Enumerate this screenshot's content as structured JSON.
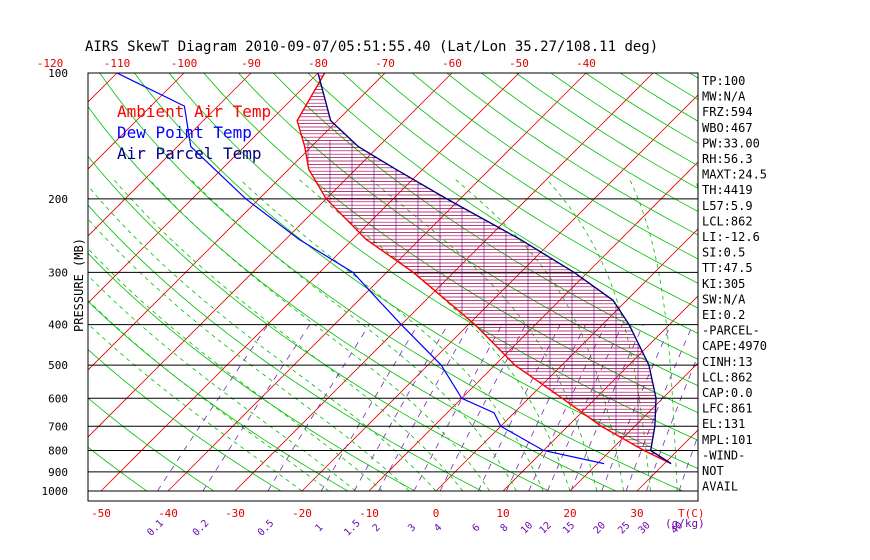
{
  "chart_data": {
    "type": "skewt",
    "title": "AIRS SkewT Diagram 2010-09-07/05:51:55.40 (Lat/Lon 35.27/108.11 deg)",
    "ylabel": "PRESSURE (MB)",
    "xlabel_right": "T(C)",
    "mixing_unit": "(g/kg)",
    "legend": [
      {
        "label": "Ambient Air Temp",
        "color": "#ff0000"
      },
      {
        "label": "Dew Point Temp",
        "color": "#0000ff"
      },
      {
        "label": "Air Parcel Temp",
        "color": "#000080"
      }
    ],
    "pressure_labels": [
      "100",
      "200",
      "300",
      "400",
      "500",
      "600",
      "700",
      "800",
      "900",
      "1000"
    ],
    "pressure_values": [
      100,
      200,
      300,
      400,
      500,
      600,
      700,
      800,
      900,
      1000
    ],
    "pressure_range": [
      100,
      1000
    ],
    "bottom_temp_labels": [
      "-50",
      "-40",
      "-30",
      "-20",
      "-10",
      "0",
      "10",
      "20",
      "30"
    ],
    "bottom_temp_values": [
      -50,
      -40,
      -30,
      -20,
      -10,
      0,
      10,
      20,
      30
    ],
    "top_temp_labels": [
      "-120",
      "-110",
      "-100",
      "-90",
      "-80",
      "-70",
      "-60",
      "-50",
      "-40"
    ],
    "top_temp_values": [
      -120,
      -110,
      -100,
      -90,
      -80,
      -70,
      -60,
      -50,
      -40
    ],
    "mixing_labels": [
      "0.1",
      "0.2",
      "0.5",
      "1",
      "1.5",
      "2",
      "3",
      "4",
      "6",
      "8",
      "10",
      "12",
      "15",
      "20",
      "25",
      "30",
      "40"
    ],
    "mixing_values": [
      0.1,
      0.2,
      0.5,
      1,
      1.5,
      2,
      3,
      4,
      6,
      8,
      10,
      12,
      15,
      20,
      25,
      30,
      40
    ],
    "ambient_temp": [
      [
        860,
        31
      ],
      [
        800,
        25
      ],
      [
        700,
        15
      ],
      [
        600,
        5
      ],
      [
        500,
        -7
      ],
      [
        400,
        -19
      ],
      [
        300,
        -36
      ],
      [
        250,
        -48
      ],
      [
        200,
        -60
      ],
      [
        170,
        -67
      ],
      [
        150,
        -71
      ],
      [
        130,
        -76
      ],
      [
        100,
        -79
      ]
    ],
    "dewpoint": [
      [
        860,
        21
      ],
      [
        800,
        10
      ],
      [
        700,
        0
      ],
      [
        650,
        -3
      ],
      [
        600,
        -10
      ],
      [
        500,
        -18
      ],
      [
        400,
        -30
      ],
      [
        350,
        -37
      ],
      [
        300,
        -45
      ],
      [
        250,
        -58
      ],
      [
        200,
        -72
      ],
      [
        150,
        -88
      ],
      [
        120,
        -95
      ],
      [
        100,
        -110
      ]
    ],
    "parcel_temp": [
      [
        860,
        31
      ],
      [
        800,
        26
      ],
      [
        700,
        23
      ],
      [
        600,
        19
      ],
      [
        500,
        13
      ],
      [
        400,
        4
      ],
      [
        350,
        -2
      ],
      [
        300,
        -12
      ],
      [
        250,
        -25
      ],
      [
        200,
        -42
      ],
      [
        170,
        -54
      ],
      [
        150,
        -63
      ],
      [
        130,
        -71
      ],
      [
        100,
        -80
      ]
    ],
    "indices": [
      "TP:100",
      "MW:N/A",
      "FRZ:594",
      "WBO:467",
      "PW:33.00",
      "RH:56.3",
      "MAXT:24.5",
      "TH:4419",
      "L57:5.9",
      "LCL:862",
      "LI:-12.6",
      "SI:0.5",
      "TT:47.5",
      "KI:305",
      "SW:N/A",
      "EI:0.2",
      "-PARCEL-",
      "CAPE:4970",
      "CINH:13",
      "LCL:862",
      "CAP:0.0",
      "LFC:861",
      "EL:131",
      "MPL:101",
      "-WIND-",
      "NOT",
      "AVAIL"
    ]
  }
}
